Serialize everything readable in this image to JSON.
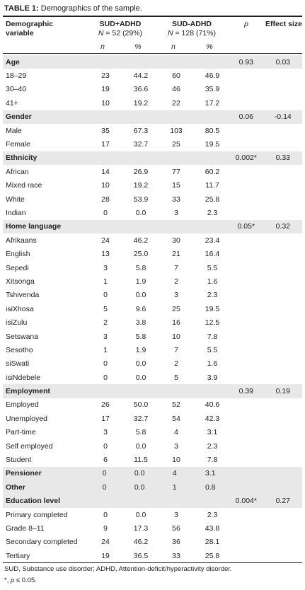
{
  "title": {
    "label": "TABLE 1:",
    "text": "Demographics of the sample."
  },
  "header": {
    "variable": "Demographic variable",
    "group1": {
      "name": "SUD+ADHD",
      "n_symbol": "N",
      "n_text": " = 52 (29%)"
    },
    "group2": {
      "name": "SUD-ADHD",
      "n_symbol": "N",
      "n_text": " = 128 (71%)"
    },
    "p": "p",
    "effect": "Effect size",
    "sub": [
      "n",
      "%",
      "n",
      "%"
    ]
  },
  "sections": [
    {
      "label": "Age",
      "p": "0.93",
      "effect": "0.03",
      "rows": [
        [
          "18–29",
          "23",
          "44.2",
          "60",
          "46.9"
        ],
        [
          "30–40",
          "19",
          "36.6",
          "46",
          "35.9"
        ],
        [
          "41+",
          "10",
          "19.2",
          "22",
          "17.2"
        ]
      ]
    },
    {
      "label": "Gender",
      "p": "0.06",
      "effect": "-0.14",
      "rows": [
        [
          "Male",
          "35",
          "67.3",
          "103",
          "80.5"
        ],
        [
          "Female",
          "17",
          "32.7",
          "25",
          "19.5"
        ]
      ]
    },
    {
      "label": "Ethnicity",
      "p": "0.002*",
      "effect": "0.33",
      "rows": [
        [
          "African",
          "14",
          "26.9",
          "77",
          "60.2"
        ],
        [
          "Mixed race",
          "10",
          "19.2",
          "15",
          "11.7"
        ],
        [
          "White",
          "28",
          "53.9",
          "33",
          "25.8"
        ],
        [
          "Indian",
          "0",
          "0.0",
          "3",
          "2.3"
        ]
      ]
    },
    {
      "label": "Home language",
      "p": "0.05*",
      "effect": "0.32",
      "rows": [
        [
          "Afrikaans",
          "24",
          "46.2",
          "30",
          "23.4"
        ],
        [
          "English",
          "13",
          "25.0",
          "21",
          "16.4"
        ],
        [
          "Sepedi",
          "3",
          "5.8",
          "7",
          "5.5"
        ],
        [
          "Xitsonga",
          "1",
          "1.9",
          "2",
          "1.6"
        ],
        [
          "Tshivenda",
          "0",
          "0.0",
          "3",
          "2.3"
        ],
        [
          "isiXhosa",
          "5",
          "9.6",
          "25",
          "19.5"
        ],
        [
          "isiZulu",
          "2",
          "3.8",
          "16",
          "12.5"
        ],
        [
          "Setswana",
          "3",
          "5.8",
          "10",
          "7.8"
        ],
        [
          "Sesotho",
          "1",
          "1.9",
          "7",
          "5.5"
        ],
        [
          "siSwati",
          "0",
          "0.0",
          "2",
          "1.6"
        ],
        [
          "isiNdebele",
          "0",
          "0.0",
          "5",
          "3.9"
        ]
      ]
    },
    {
      "label": "Employment",
      "p": "0.39",
      "effect": "0.19",
      "rows": [
        [
          "Employed",
          "26",
          "50.0",
          "52",
          "40.6"
        ],
        [
          "Unemployed",
          "17",
          "32.7",
          "54",
          "42.3"
        ],
        [
          "Part-time",
          "3",
          "5.8",
          "4",
          "3.1"
        ],
        [
          "Self employed",
          "0",
          "0.0",
          "3",
          "2.3"
        ],
        [
          "Student",
          "6",
          "11.5",
          "10",
          "7.8"
        ]
      ]
    },
    {
      "label": "Pensioner",
      "values": [
        "0",
        "0.0",
        "4",
        "3.1"
      ]
    },
    {
      "label": "Other",
      "values": [
        "0",
        "0.0",
        "1",
        "0.8"
      ]
    },
    {
      "label": "Education level",
      "p": "0.004*",
      "effect": "0.27",
      "rows": [
        [
          "Primary completed",
          "0",
          "0.0",
          "3",
          "2.3"
        ],
        [
          "Grade 8–11",
          "9",
          "17.3",
          "56",
          "43.8"
        ],
        [
          "Secondary completed",
          "24",
          "46.2",
          "36",
          "28.1"
        ],
        [
          "Tertiary",
          "19",
          "36.5",
          "33",
          "25.8"
        ]
      ]
    }
  ],
  "footnotes": {
    "abbreviations": "SUD, Substance use disorder; ADHD, Attention-deficit/hyperactivity disorder.",
    "significance": {
      "prefix": "*, ",
      "symbol": "p",
      "text": " ≤ 0.05."
    }
  }
}
